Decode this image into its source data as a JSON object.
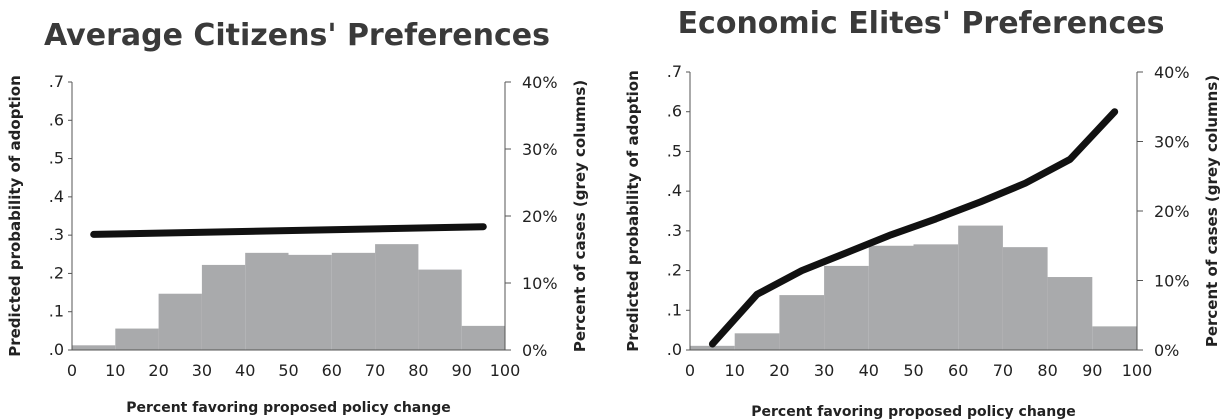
{
  "chart_data": [
    {
      "type": "bar+line",
      "title": "Average Citizens' Preferences",
      "xlabel": "Percent favoring proposed policy change",
      "ylabel_left": "Predicted probability of adoption",
      "ylabel_right": "Percent of cases (grey columns)",
      "xlim": [
        0,
        100
      ],
      "ylim_left": [
        0,
        0.7
      ],
      "ylim_right": [
        0,
        40
      ],
      "x_ticks": [
        "0",
        "10",
        "20",
        "30",
        "40",
        "50",
        "60",
        "70",
        "80",
        "90",
        "100"
      ],
      "y_ticks_left": [
        ".0",
        ".1",
        ".2",
        ".3",
        ".4",
        ".5",
        ".6",
        ".7"
      ],
      "y_ticks_right": [
        "0%",
        "10%",
        "20%",
        "30%",
        "40%"
      ],
      "bars": {
        "bins": [
          [
            0,
            10
          ],
          [
            10,
            20
          ],
          [
            20,
            30
          ],
          [
            30,
            40
          ],
          [
            40,
            50
          ],
          [
            50,
            60
          ],
          [
            60,
            70
          ],
          [
            70,
            80
          ],
          [
            80,
            90
          ],
          [
            90,
            100
          ]
        ],
        "values": [
          0.7,
          3.2,
          8.4,
          12.7,
          14.5,
          14.2,
          14.5,
          15.8,
          12.0,
          3.6
        ]
      },
      "line": {
        "x": [
          5,
          95
        ],
        "y": [
          0.302,
          0.322
        ]
      }
    },
    {
      "type": "bar+line",
      "title": "Economic Elites' Preferences",
      "xlabel": "Percent favoring proposed policy change",
      "ylabel_left": "Predicted probability of adoption",
      "ylabel_right": "Percent of cases (grey columns)",
      "xlim": [
        0,
        100
      ],
      "ylim_left": [
        0,
        0.7
      ],
      "ylim_right": [
        0,
        40
      ],
      "x_ticks": [
        "0",
        "10",
        "20",
        "30",
        "40",
        "50",
        "60",
        "70",
        "80",
        "90",
        "100"
      ],
      "y_ticks_left": [
        ".0",
        ".1",
        ".2",
        ".3",
        ".4",
        ".5",
        ".6",
        ".7"
      ],
      "y_ticks_right": [
        "0%",
        "10%",
        "20%",
        "30%",
        "40%"
      ],
      "bars": {
        "bins": [
          [
            0,
            10
          ],
          [
            10,
            20
          ],
          [
            20,
            30
          ],
          [
            30,
            40
          ],
          [
            40,
            50
          ],
          [
            50,
            60
          ],
          [
            60,
            70
          ],
          [
            70,
            80
          ],
          [
            80,
            90
          ],
          [
            90,
            100
          ]
        ],
        "values": [
          0.6,
          2.4,
          7.9,
          12.1,
          15.0,
          15.2,
          17.9,
          14.8,
          10.5,
          3.4
        ]
      },
      "line": {
        "x": [
          5,
          15,
          25,
          35,
          45,
          55,
          65,
          75,
          85,
          95
        ],
        "y": [
          0.015,
          0.14,
          0.2,
          0.245,
          0.29,
          0.33,
          0.373,
          0.42,
          0.48,
          0.6
        ]
      }
    }
  ]
}
